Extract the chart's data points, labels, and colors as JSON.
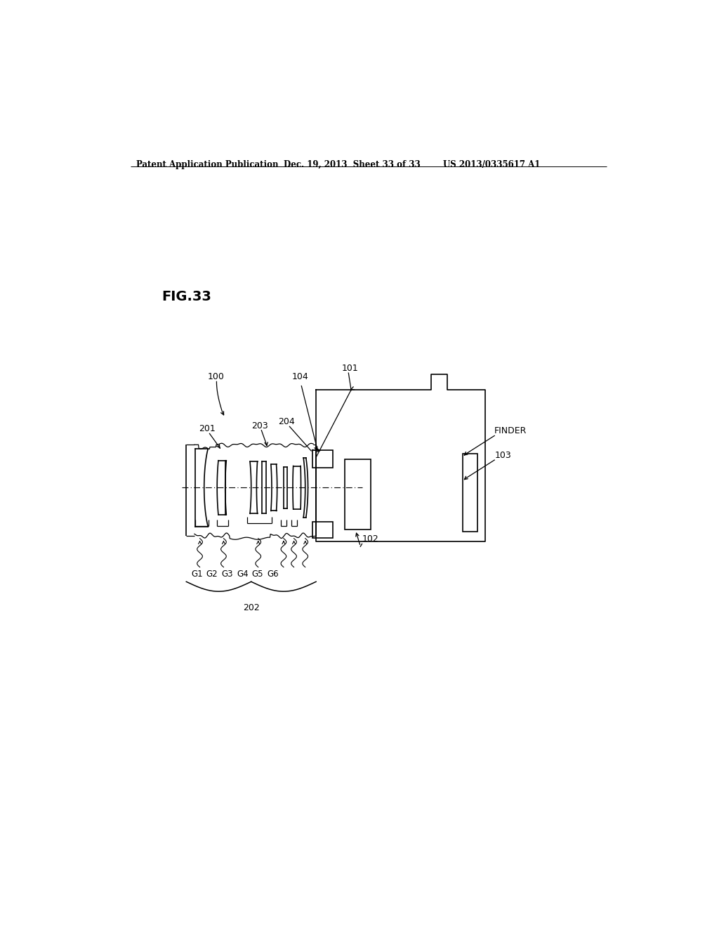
{
  "bg_color": "#ffffff",
  "fig_label": "FIG.33",
  "header_left": "Patent Application Publication",
  "header_mid": "Dec. 19, 2013  Sheet 33 of 33",
  "header_right": "US 2013/0335617 A1"
}
